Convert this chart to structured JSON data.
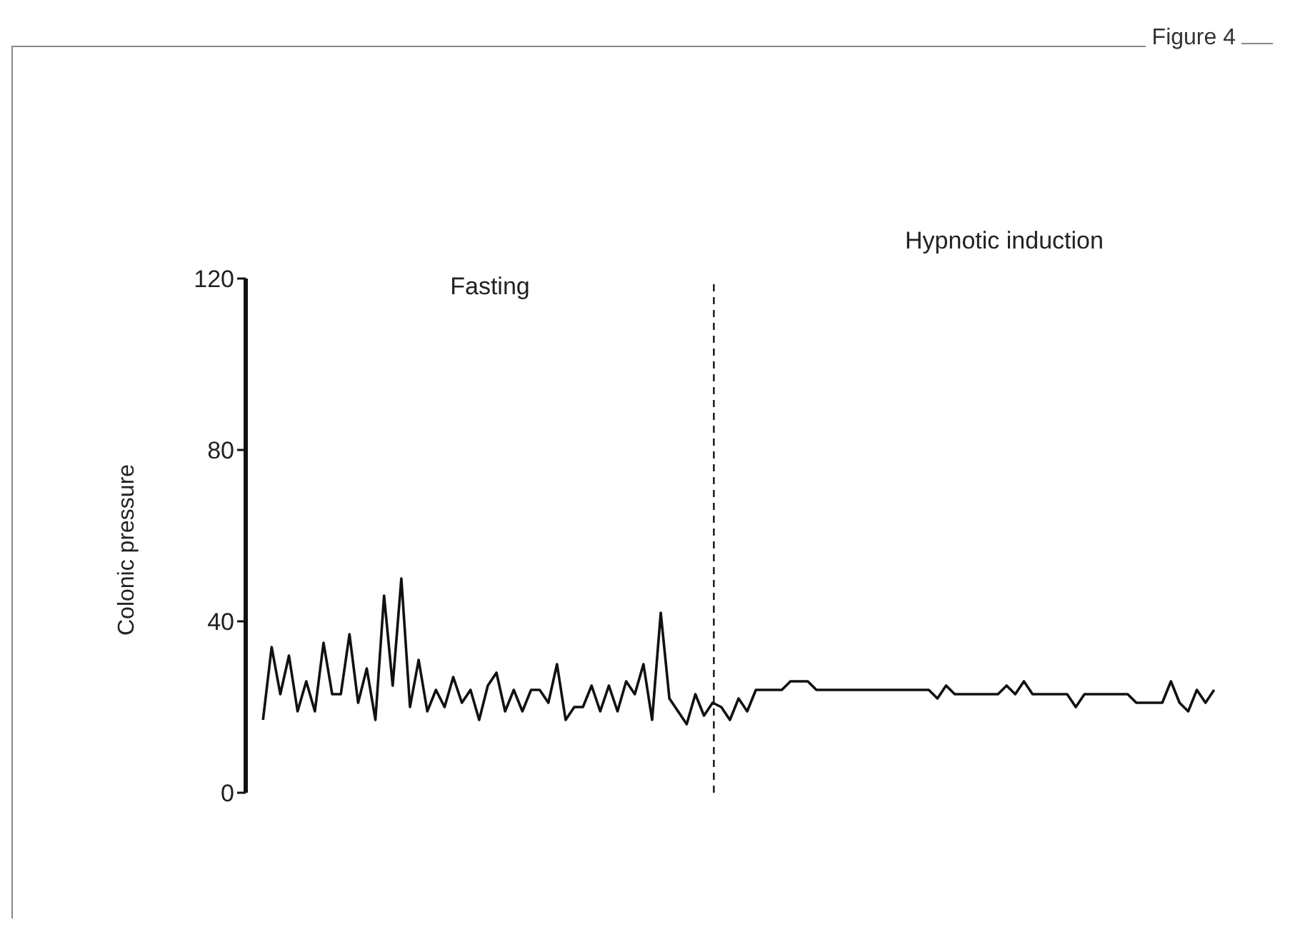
{
  "chart_data": {
    "type": "line",
    "title": "Figure 4",
    "ylabel": "Colonic pressure",
    "annotations": [
      "Fasting",
      "Hypnotic induction"
    ],
    "categories": [
      null,
      null,
      null,
      null,
      null,
      null,
      null,
      null,
      null,
      null,
      null,
      null,
      null,
      null,
      null,
      null,
      null,
      null,
      null,
      null,
      null,
      null,
      null,
      null,
      null,
      null,
      null,
      null,
      null,
      null,
      null,
      null,
      null,
      null,
      null,
      null,
      null,
      null,
      null,
      null,
      null,
      null,
      null,
      null,
      null,
      null,
      null,
      null,
      null,
      null,
      null,
      null,
      null,
      null,
      null,
      null,
      null,
      null,
      null,
      null,
      null,
      null,
      null,
      null,
      null,
      null,
      null,
      null,
      null,
      null,
      null,
      null,
      null,
      null,
      null,
      null,
      null,
      null,
      null,
      null,
      null,
      null,
      null,
      null,
      null,
      null,
      null,
      null,
      null,
      null,
      null,
      null,
      null,
      null,
      null,
      null,
      null,
      null,
      null,
      null,
      null,
      null,
      null,
      null,
      null,
      null,
      null,
      null,
      null,
      null,
      null
    ],
    "series": [
      {
        "color": "#111111",
        "values": [
          17,
          34,
          23,
          32,
          19,
          26,
          19,
          35,
          23,
          23,
          37,
          21,
          29,
          17,
          46,
          25,
          50,
          20,
          31,
          19,
          24,
          20,
          27,
          21,
          24,
          17,
          25,
          28,
          19,
          24,
          19,
          24,
          24,
          21,
          30,
          17,
          20,
          20,
          25,
          19,
          25,
          19,
          26,
          23,
          30,
          17,
          42,
          22,
          19,
          16,
          23,
          18,
          21,
          20,
          17,
          22,
          19,
          24,
          24,
          24,
          24,
          26,
          26,
          26,
          24,
          24,
          24,
          24,
          24,
          24,
          24,
          24,
          24,
          24,
          24,
          24,
          24,
          24,
          22,
          25,
          23,
          23,
          23,
          23,
          23,
          23,
          25,
          23,
          26,
          23,
          23,
          23,
          23,
          23,
          20,
          23,
          23,
          23,
          23,
          23,
          23,
          21,
          21,
          21,
          21,
          26,
          21,
          19,
          24,
          21,
          24
        ]
      }
    ],
    "ylim": [
      0,
      120
    ],
    "yticks": [
      0,
      40,
      80,
      120
    ],
    "tick_labels": "y",
    "grid": false,
    "legend": false,
    "marker": "none",
    "line_style": "solid",
    "ref_lines": [
      {
        "axis": "x",
        "line_style": "dashed",
        "color": "#111111"
      }
    ]
  }
}
